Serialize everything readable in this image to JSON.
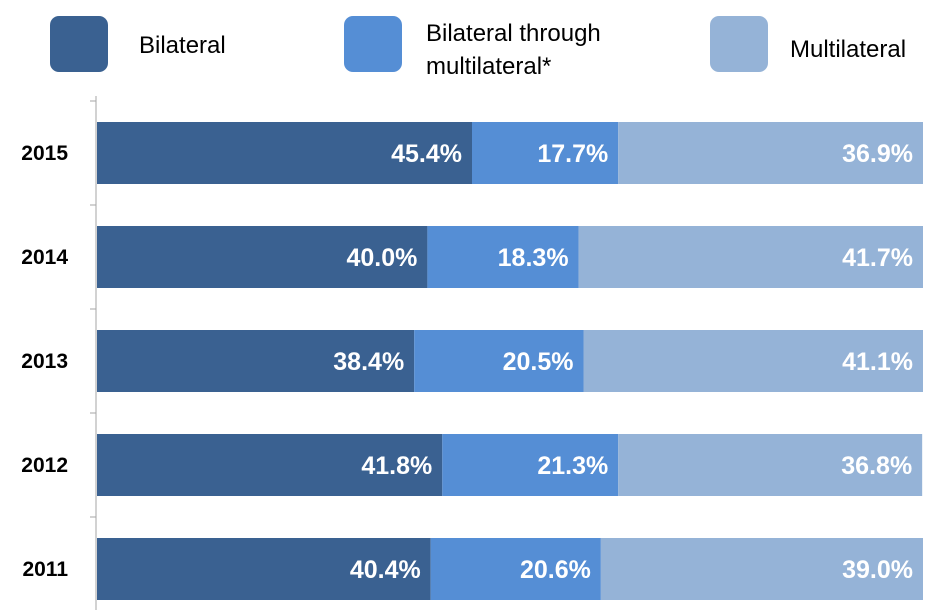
{
  "chart_data": {
    "type": "bar",
    "orientation": "horizontal",
    "stacked": true,
    "percent_stacked": true,
    "categories": [
      "2015",
      "2014",
      "2013",
      "2012",
      "2011"
    ],
    "series": [
      {
        "name": "Bilateral",
        "color": "#3a6191",
        "values": [
          45.4,
          40.0,
          38.4,
          41.8,
          40.4
        ],
        "labels": [
          "45.4%",
          "40.0%",
          "38.4%",
          "41.8%",
          "40.4%"
        ]
      },
      {
        "name": "Bilateral through multilateral*",
        "color": "#558ed5",
        "values": [
          17.7,
          18.3,
          20.5,
          21.3,
          20.6
        ],
        "labels": [
          "17.7%",
          "18.3%",
          "20.5%",
          "21.3%",
          "20.6%"
        ]
      },
      {
        "name": "Multilateral",
        "color": "#95b3d7",
        "values": [
          36.9,
          41.7,
          41.1,
          36.8,
          39.0
        ],
        "labels": [
          "36.9%",
          "41.7%",
          "41.1%",
          "36.8%",
          "39.0%"
        ]
      }
    ],
    "xlim": [
      0,
      100
    ],
    "legend_position": "top",
    "grid": false
  },
  "legend": {
    "items": [
      {
        "label_lines": [
          "Bilateral"
        ],
        "color": "#3a6191"
      },
      {
        "label_lines": [
          "Bilateral through",
          "multilateral*"
        ],
        "color": "#558ed5"
      },
      {
        "label_lines": [
          "Multilateral"
        ],
        "color": "#95b3d7"
      }
    ]
  }
}
